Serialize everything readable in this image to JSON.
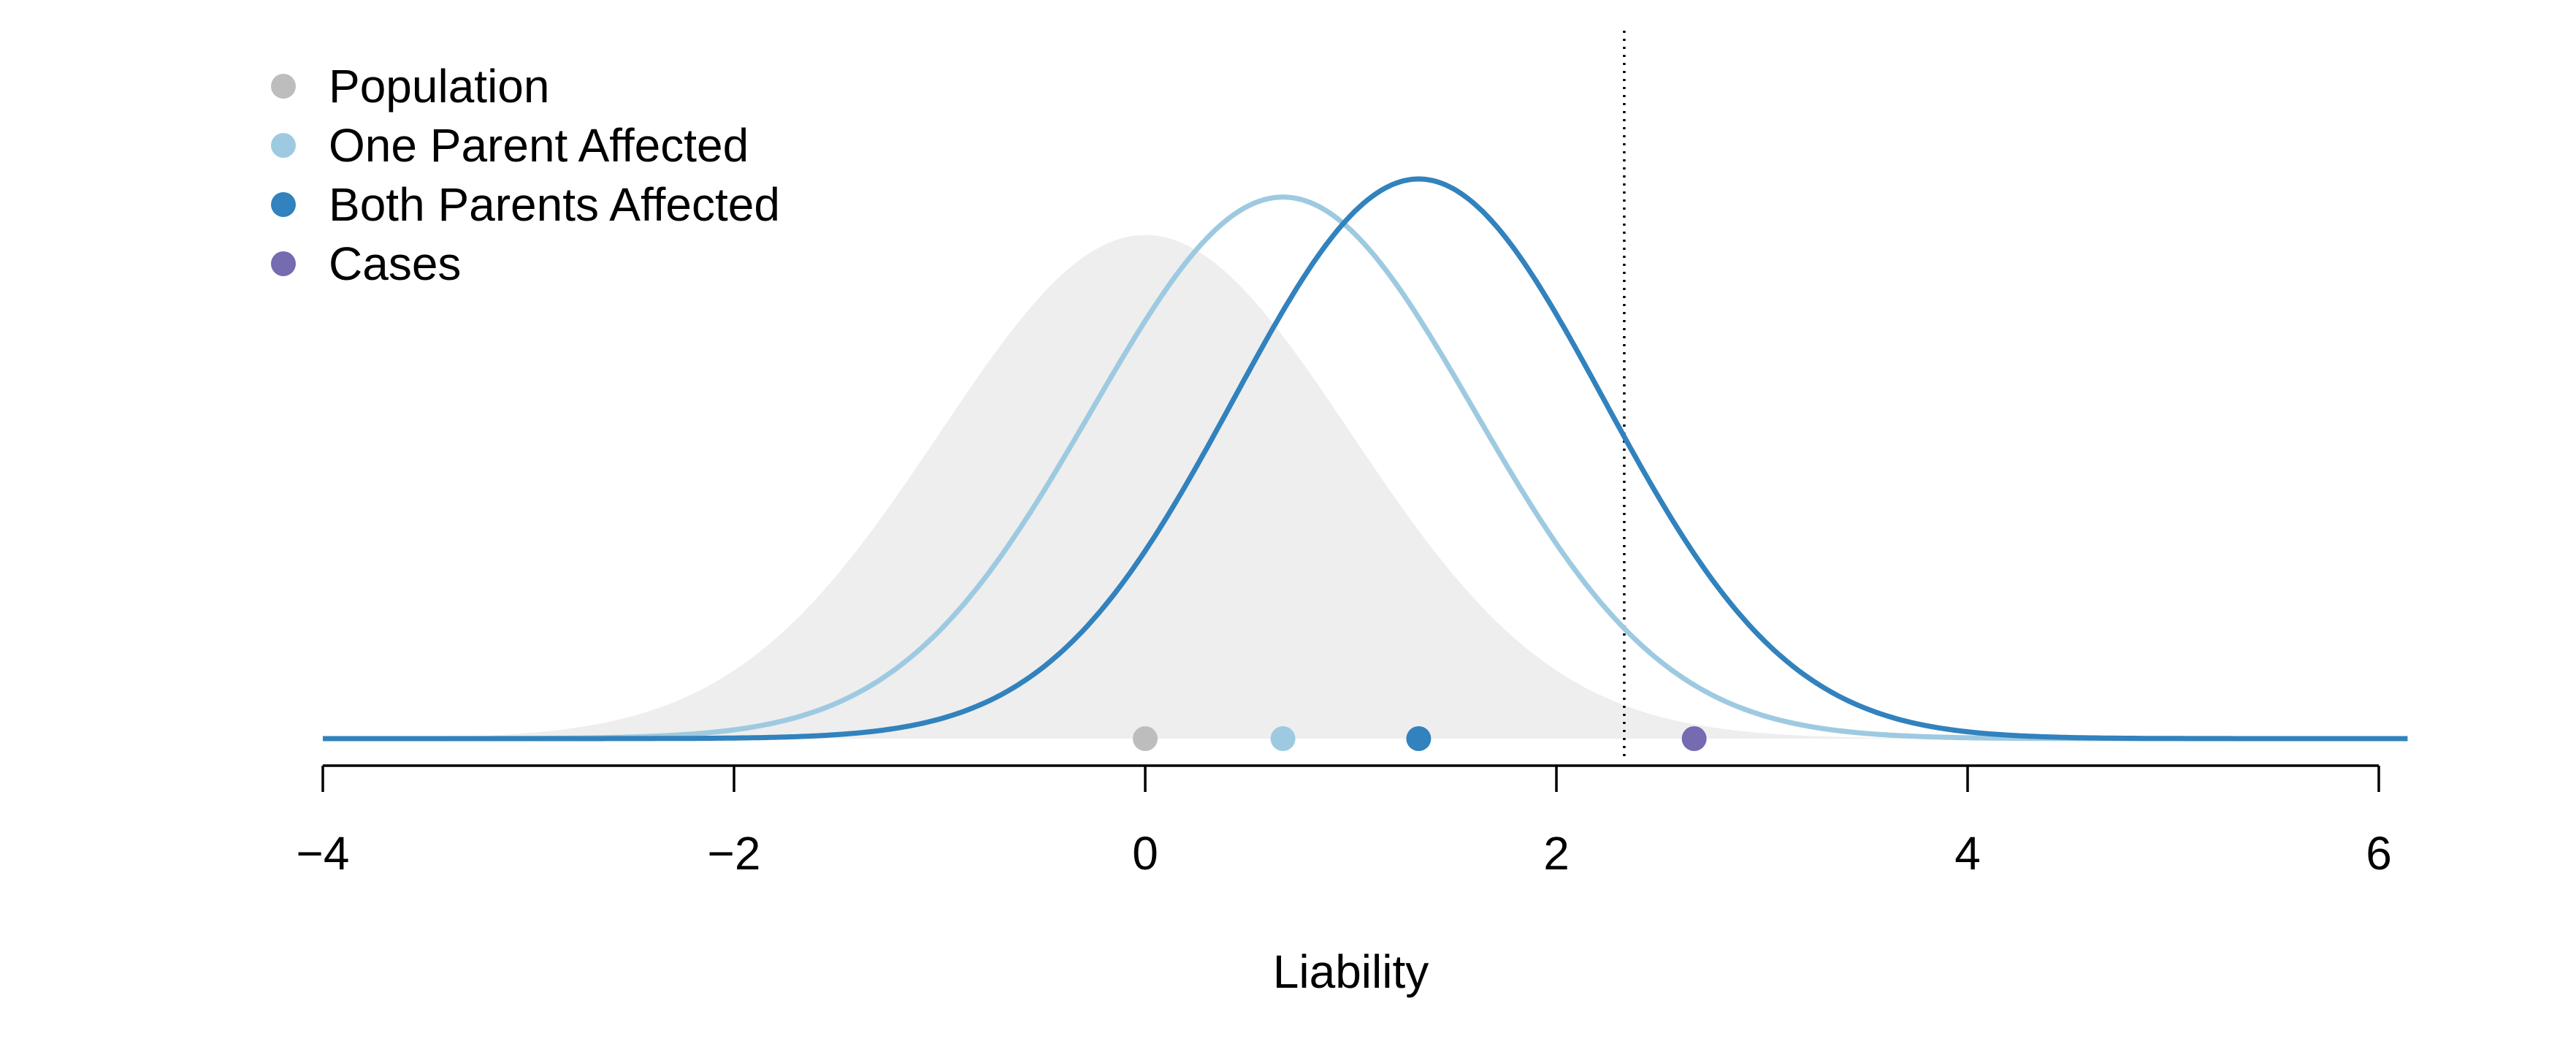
{
  "chart_data": {
    "type": "line",
    "title": "",
    "xlabel": "Liability",
    "ylabel": "",
    "xlim": [
      -4,
      6.15
    ],
    "xticks": [
      -4,
      -2,
      0,
      2,
      4,
      6
    ],
    "xtick_labels": [
      "−4",
      "−2",
      "0",
      "2",
      "4",
      "6"
    ],
    "grid": false,
    "legend_position": "top-left",
    "threshold": 2.33,
    "series": [
      {
        "name": "Population",
        "kind": "shaded-density",
        "mean": 0,
        "sd": 1.0,
        "color": "#bdbdbd",
        "fill": "#eeeeee",
        "marker_x": 0
      },
      {
        "name": "One Parent Affected",
        "kind": "density-line",
        "mean": 0.67,
        "sd": 0.93,
        "color": "#9ecae1",
        "marker_x": 0.67
      },
      {
        "name": "Both Parents Affected",
        "kind": "density-line",
        "mean": 1.33,
        "sd": 0.9,
        "color": "#3182bd",
        "marker_x": 1.33
      },
      {
        "name": "Cases",
        "kind": "marker-only",
        "color": "#756bb1",
        "marker_x": 2.67
      }
    ]
  }
}
